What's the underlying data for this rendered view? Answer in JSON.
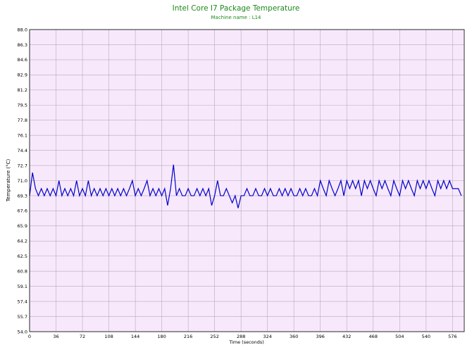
{
  "chart_data": {
    "type": "line",
    "title": "Intel Core I7 Package Temperature",
    "subtitle": "Machine name : L14",
    "x_label": "Time (seconds)",
    "y_label": "Temperature (°C)",
    "xlim": [
      0,
      592
    ],
    "ylim": [
      54,
      88
    ],
    "xticks": [
      0,
      36,
      72,
      108,
      144,
      180,
      216,
      252,
      288,
      324,
      360,
      396,
      432,
      468,
      504,
      540,
      576
    ],
    "yticks": [
      {
        "value": 54,
        "label": "54.0"
      },
      55.7,
      57.4,
      59.1,
      60.8,
      62.5,
      64.2,
      65.9,
      67.6,
      69.3,
      {
        "value": 71,
        "label": "71.0"
      },
      72.7,
      74.4,
      76.1,
      77.8,
      79.5,
      81.2,
      82.9,
      84.6,
      86.3,
      {
        "value": 88,
        "label": "88.0"
      }
    ],
    "grid": true,
    "x": [
      0,
      4,
      8,
      12,
      16,
      20,
      24,
      28,
      32,
      36,
      40,
      44,
      48,
      52,
      56,
      60,
      64,
      68,
      72,
      76,
      80,
      84,
      88,
      92,
      96,
      100,
      104,
      108,
      112,
      116,
      120,
      124,
      128,
      132,
      136,
      140,
      144,
      148,
      152,
      156,
      160,
      164,
      168,
      172,
      176,
      180,
      184,
      188,
      192,
      196,
      200,
      204,
      208,
      212,
      216,
      220,
      224,
      228,
      232,
      236,
      240,
      244,
      248,
      252,
      256,
      260,
      264,
      268,
      272,
      276,
      280,
      284,
      288,
      292,
      296,
      300,
      304,
      308,
      312,
      316,
      320,
      324,
      328,
      332,
      336,
      340,
      344,
      348,
      352,
      356,
      360,
      364,
      368,
      372,
      376,
      380,
      384,
      388,
      392,
      396,
      400,
      404,
      408,
      412,
      416,
      420,
      424,
      428,
      432,
      436,
      440,
      444,
      448,
      452,
      456,
      460,
      464,
      468,
      472,
      476,
      480,
      484,
      488,
      492,
      496,
      500,
      504,
      508,
      512,
      516,
      520,
      524,
      528,
      532,
      536,
      540,
      544,
      548,
      552,
      556,
      560,
      564,
      568,
      572,
      576,
      580,
      584,
      588
    ],
    "series": [
      {
        "name": "Temperature",
        "color": "#0000cc",
        "values": [
          69.3,
          71.9,
          70.1,
          69.3,
          70.1,
          69.3,
          70.1,
          69.3,
          70.1,
          69.3,
          71.0,
          69.3,
          70.1,
          69.3,
          70.1,
          69.3,
          71.0,
          69.3,
          70.1,
          69.3,
          71.0,
          69.3,
          70.1,
          69.3,
          70.1,
          69.3,
          70.1,
          69.3,
          70.1,
          69.3,
          70.1,
          69.3,
          70.1,
          69.3,
          70.1,
          71.0,
          69.3,
          70.1,
          69.3,
          70.1,
          71.0,
          69.3,
          70.1,
          69.3,
          70.1,
          69.3,
          70.1,
          68.2,
          70.1,
          72.8,
          69.3,
          70.1,
          69.3,
          69.3,
          70.1,
          69.3,
          69.3,
          70.1,
          69.3,
          70.1,
          69.3,
          70.1,
          68.2,
          69.3,
          71.0,
          69.3,
          69.3,
          70.1,
          69.3,
          68.5,
          69.3,
          67.9,
          69.3,
          69.3,
          70.1,
          69.3,
          69.3,
          70.1,
          69.3,
          69.3,
          70.1,
          69.3,
          70.1,
          69.3,
          69.3,
          70.1,
          69.3,
          70.1,
          69.3,
          70.1,
          69.3,
          69.3,
          70.1,
          69.3,
          70.1,
          69.3,
          69.3,
          70.1,
          69.3,
          71.0,
          70.1,
          69.3,
          71.0,
          70.1,
          69.3,
          70.1,
          71.0,
          69.3,
          71.0,
          70.1,
          71.0,
          70.1,
          71.0,
          69.3,
          71.0,
          70.1,
          71.0,
          70.1,
          69.3,
          71.0,
          70.1,
          71.0,
          70.1,
          69.3,
          71.0,
          70.1,
          69.3,
          71.0,
          70.1,
          71.0,
          70.1,
          69.3,
          71.0,
          70.1,
          71.0,
          70.1,
          71.0,
          70.1,
          69.3,
          71.0,
          70.1,
          71.0,
          70.1,
          71.0,
          70.1,
          70.1,
          70.1,
          69.3
        ]
      }
    ]
  }
}
